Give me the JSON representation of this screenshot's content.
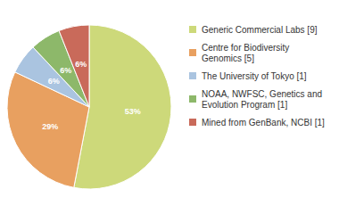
{
  "chart_data": {
    "type": "pie",
    "categories": [
      "Generic Commercial Labs [9]",
      "Centre for Biodiversity\nGenomics [5]",
      "The University of Tokyo [1]",
      "NOAA, NWFSC, Genetics and\nEvolution Program [1]",
      "Mined from GenBank, NCBI [1]"
    ],
    "values": [
      53,
      29,
      6,
      6,
      6
    ],
    "value_labels": [
      "53%",
      "29%",
      "6%",
      "6%",
      "6%"
    ],
    "colors": [
      "#cdd97a",
      "#e8a060",
      "#aac4e0",
      "#8db86a",
      "#c96a5a"
    ],
    "data_labels": true,
    "legend": "upper right"
  }
}
